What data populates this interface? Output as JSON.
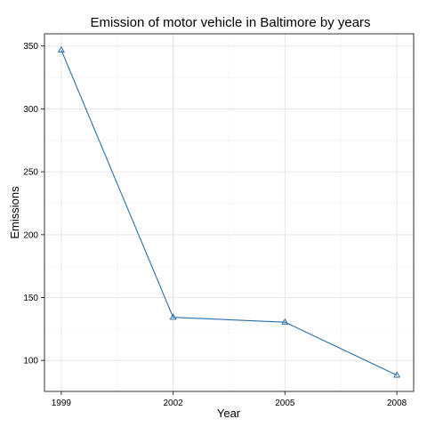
{
  "chart_data": {
    "type": "line",
    "title": "Emission of motor vehicle in Baltimore by years",
    "xlabel": "Year",
    "ylabel": "Emissions",
    "x": [
      1999,
      2002,
      2005,
      2008
    ],
    "series": [
      {
        "values": [
          346.82,
          134.31,
          130.43,
          88.28
        ]
      }
    ],
    "x_ticks": [
      1999,
      2002,
      2005,
      2008
    ],
    "y_ticks": [
      100,
      150,
      200,
      250,
      300,
      350
    ],
    "xlim": [
      1998.55,
      2008.45
    ],
    "ylim": [
      75.4,
      359.7
    ],
    "grid": true,
    "marker": "triangle-open",
    "line_color": "#2B6FAA",
    "grid_color": "#E6E6E6",
    "minor_grid_color": "#F3F3F3",
    "panel_border_color": "#333333"
  }
}
